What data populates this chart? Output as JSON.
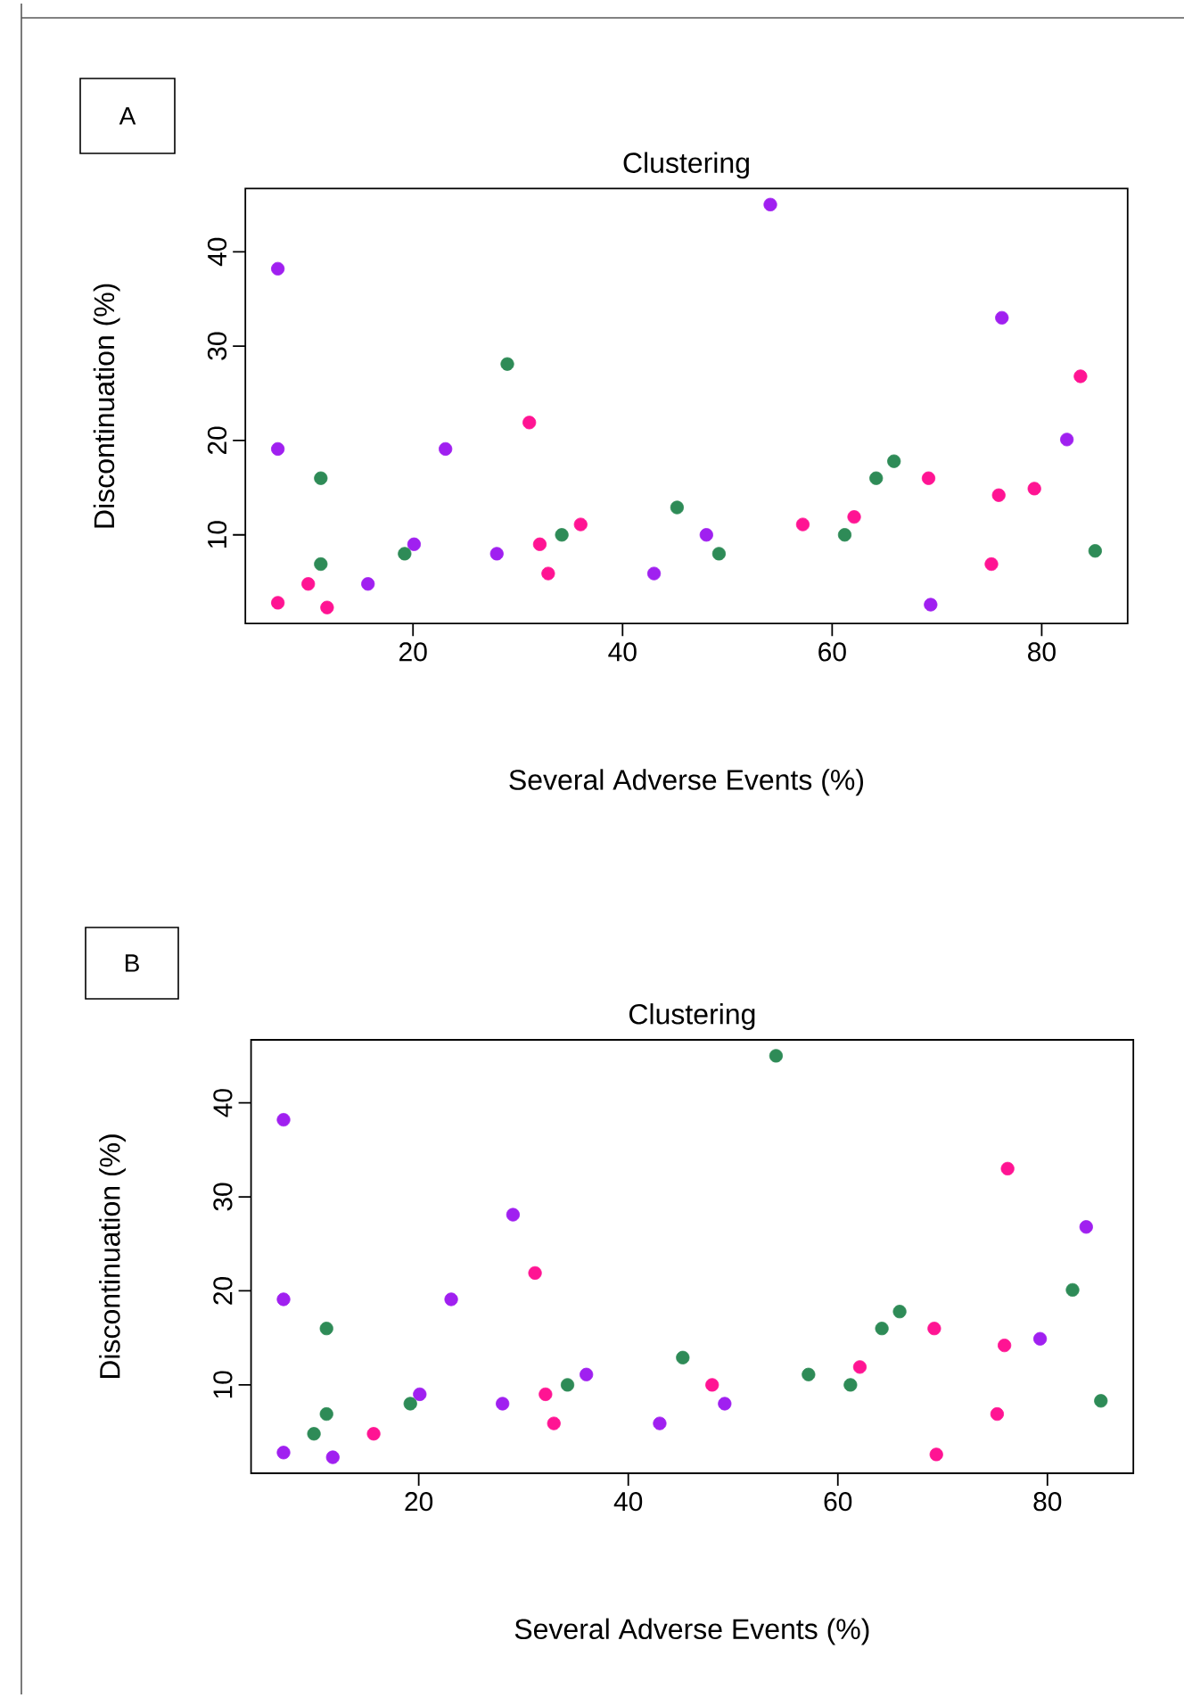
{
  "chart_data": [
    {
      "type": "scatter",
      "title": "Clustering",
      "xlabel": "Several Adverse Events (%)",
      "ylabel": "Discontinuation (%)",
      "annotations": [
        "A"
      ],
      "xlim": [
        4,
        88.2
      ],
      "ylim": [
        0.6,
        46.7
      ],
      "xticks": [
        20,
        40,
        60,
        80
      ],
      "yticks": [
        10,
        20,
        30,
        40
      ],
      "series": [
        {
          "color": "#a020f0",
          "x": [
            7.1,
            7.1,
            15.7,
            20.1,
            23.1,
            28.0,
            43.0,
            48.0,
            54.1,
            69.4,
            76.2,
            82.4
          ],
          "values": [
            38.2,
            19.1,
            4.8,
            9.0,
            19.1,
            8.0,
            5.9,
            10.0,
            45.0,
            2.6,
            33.0,
            20.1
          ]
        },
        {
          "color": "#ff1493",
          "x": [
            7.1,
            10.0,
            11.8,
            31.1,
            32.1,
            32.9,
            36.0,
            57.2,
            62.1,
            69.2,
            75.9,
            75.2,
            79.3,
            83.7
          ],
          "values": [
            2.8,
            4.8,
            2.3,
            21.9,
            9.0,
            5.9,
            11.1,
            11.1,
            11.9,
            16.0,
            14.2,
            6.9,
            14.9,
            26.8
          ]
        },
        {
          "color": "#2e8b57",
          "x": [
            11.2,
            11.2,
            19.2,
            29.0,
            34.2,
            45.2,
            49.2,
            61.2,
            64.2,
            65.9,
            85.1
          ],
          "values": [
            16.0,
            6.9,
            8.0,
            28.1,
            10.0,
            12.9,
            8.0,
            10.0,
            16.0,
            17.8,
            8.3
          ]
        }
      ]
    },
    {
      "type": "scatter",
      "title": "Clustering",
      "xlabel": "Several Adverse Events (%)",
      "ylabel": "Discontinuation (%)",
      "annotations": [
        "B"
      ],
      "xlim": [
        4,
        88.2
      ],
      "ylim": [
        0.6,
        46.7
      ],
      "xticks": [
        20,
        40,
        60,
        80
      ],
      "yticks": [
        10,
        20,
        30,
        40
      ],
      "series": [
        {
          "color": "#a020f0",
          "x": [
            7.1,
            7.1,
            7.1,
            11.8,
            20.1,
            23.1,
            28.0,
            29.0,
            36.0,
            43.0,
            49.2,
            79.3,
            83.7
          ],
          "values": [
            38.2,
            19.1,
            2.8,
            2.3,
            9.0,
            19.1,
            8.0,
            28.1,
            11.1,
            5.9,
            8.0,
            14.9,
            26.8
          ]
        },
        {
          "color": "#ff1493",
          "x": [
            15.7,
            31.1,
            32.1,
            32.9,
            48.0,
            62.1,
            69.2,
            69.4,
            75.2,
            75.9,
            76.2
          ],
          "values": [
            4.8,
            21.9,
            9.0,
            5.9,
            10.0,
            11.9,
            16.0,
            2.6,
            6.9,
            14.2,
            33.0
          ]
        },
        {
          "color": "#2e8b57",
          "x": [
            10.0,
            11.2,
            11.2,
            19.2,
            34.2,
            45.2,
            54.1,
            57.2,
            61.2,
            64.2,
            65.9,
            82.4,
            85.1
          ],
          "values": [
            4.8,
            16.0,
            6.9,
            8.0,
            10.0,
            12.9,
            45.0,
            11.1,
            10.0,
            16.0,
            17.8,
            20.1,
            8.3
          ]
        }
      ]
    }
  ]
}
